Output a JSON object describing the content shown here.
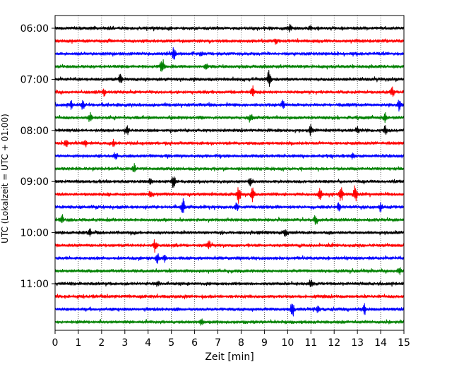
{
  "chart_data": {
    "type": "line",
    "title": "",
    "xlabel": "Zeit  [min]",
    "ylabel": "UTC (Lokalzeit = UTC + 01:00)",
    "xlim": [
      0,
      15
    ],
    "x_ticks": [
      "0",
      "1",
      "2",
      "3",
      "4",
      "5",
      "6",
      "7",
      "8",
      "9",
      "10",
      "11",
      "12",
      "13",
      "14",
      "15"
    ],
    "y_ticks": [
      "06:00",
      "07:00",
      "08:00",
      "09:00",
      "10:00",
      "11:00"
    ],
    "grid": "vertical dotted",
    "trace_interval_min": 15,
    "start_time": "06:00",
    "colors": [
      "#000000",
      "#ff0000",
      "#0000ff",
      "#008000"
    ],
    "series": [
      {
        "time": "06:00",
        "color": "#000000",
        "events": [
          [
            10.1,
            5
          ],
          [
            11.0,
            3
          ]
        ]
      },
      {
        "time": "06:15",
        "color": "#ff0000",
        "events": [
          [
            9.5,
            4
          ]
        ]
      },
      {
        "time": "06:30",
        "color": "#0000ff",
        "events": [
          [
            5.1,
            9
          ],
          [
            6.3,
            3
          ]
        ]
      },
      {
        "time": "06:45",
        "color": "#008000",
        "events": [
          [
            4.6,
            11
          ],
          [
            6.5,
            3
          ]
        ]
      },
      {
        "time": "07:00",
        "color": "#000000",
        "events": [
          [
            2.8,
            7
          ],
          [
            9.2,
            13
          ]
        ]
      },
      {
        "time": "07:15",
        "color": "#ff0000",
        "events": [
          [
            2.1,
            4
          ],
          [
            8.5,
            9
          ],
          [
            14.5,
            7
          ]
        ]
      },
      {
        "time": "07:30",
        "color": "#0000ff",
        "events": [
          [
            0.7,
            5
          ],
          [
            1.2,
            5
          ],
          [
            9.8,
            6
          ],
          [
            14.8,
            9
          ]
        ]
      },
      {
        "time": "07:45",
        "color": "#008000",
        "events": [
          [
            1.5,
            6
          ],
          [
            8.4,
            7
          ],
          [
            14.2,
            6
          ]
        ]
      },
      {
        "time": "08:00",
        "color": "#000000",
        "events": [
          [
            3.1,
            7
          ],
          [
            11.0,
            7
          ],
          [
            13.0,
            5
          ],
          [
            14.2,
            6
          ]
        ]
      },
      {
        "time": "08:15",
        "color": "#ff0000",
        "events": [
          [
            0.5,
            5
          ],
          [
            1.3,
            5
          ],
          [
            2.5,
            4
          ]
        ]
      },
      {
        "time": "08:30",
        "color": "#0000ff",
        "events": [
          [
            2.6,
            5
          ],
          [
            12.8,
            4
          ]
        ]
      },
      {
        "time": "08:45",
        "color": "#008000",
        "events": [
          [
            3.4,
            6
          ]
        ]
      },
      {
        "time": "09:00",
        "color": "#000000",
        "events": [
          [
            5.1,
            10
          ],
          [
            4.1,
            5
          ],
          [
            8.4,
            5
          ]
        ]
      },
      {
        "time": "09:15",
        "color": "#ff0000",
        "events": [
          [
            7.9,
            14
          ],
          [
            8.5,
            9
          ],
          [
            11.4,
            8
          ],
          [
            12.3,
            11
          ],
          [
            12.9,
            13
          ],
          [
            4.1,
            5
          ]
        ]
      },
      {
        "time": "09:30",
        "color": "#0000ff",
        "events": [
          [
            5.5,
            12
          ],
          [
            7.8,
            6
          ],
          [
            12.2,
            6
          ],
          [
            14.0,
            5
          ]
        ]
      },
      {
        "time": "09:45",
        "color": "#008000",
        "events": [
          [
            0.3,
            6
          ],
          [
            11.2,
            6
          ]
        ]
      },
      {
        "time": "10:00",
        "color": "#000000",
        "events": [
          [
            1.5,
            5
          ],
          [
            9.9,
            5
          ]
        ]
      },
      {
        "time": "10:15",
        "color": "#ff0000",
        "events": [
          [
            4.3,
            8
          ],
          [
            6.6,
            5
          ]
        ]
      },
      {
        "time": "10:30",
        "color": "#0000ff",
        "events": [
          [
            4.4,
            6
          ],
          [
            4.7,
            5
          ]
        ]
      },
      {
        "time": "10:45",
        "color": "#008000",
        "events": [
          [
            14.8,
            6
          ]
        ]
      },
      {
        "time": "11:00",
        "color": "#000000",
        "events": [
          [
            11.0,
            7
          ],
          [
            4.4,
            4
          ]
        ]
      },
      {
        "time": "11:15",
        "color": "#ff0000",
        "events": []
      },
      {
        "time": "11:30",
        "color": "#0000ff",
        "events": [
          [
            10.2,
            12
          ],
          [
            11.3,
            8
          ],
          [
            13.3,
            8
          ]
        ]
      },
      {
        "time": "11:45",
        "color": "#008000",
        "events": [
          [
            6.3,
            4
          ]
        ]
      }
    ]
  }
}
